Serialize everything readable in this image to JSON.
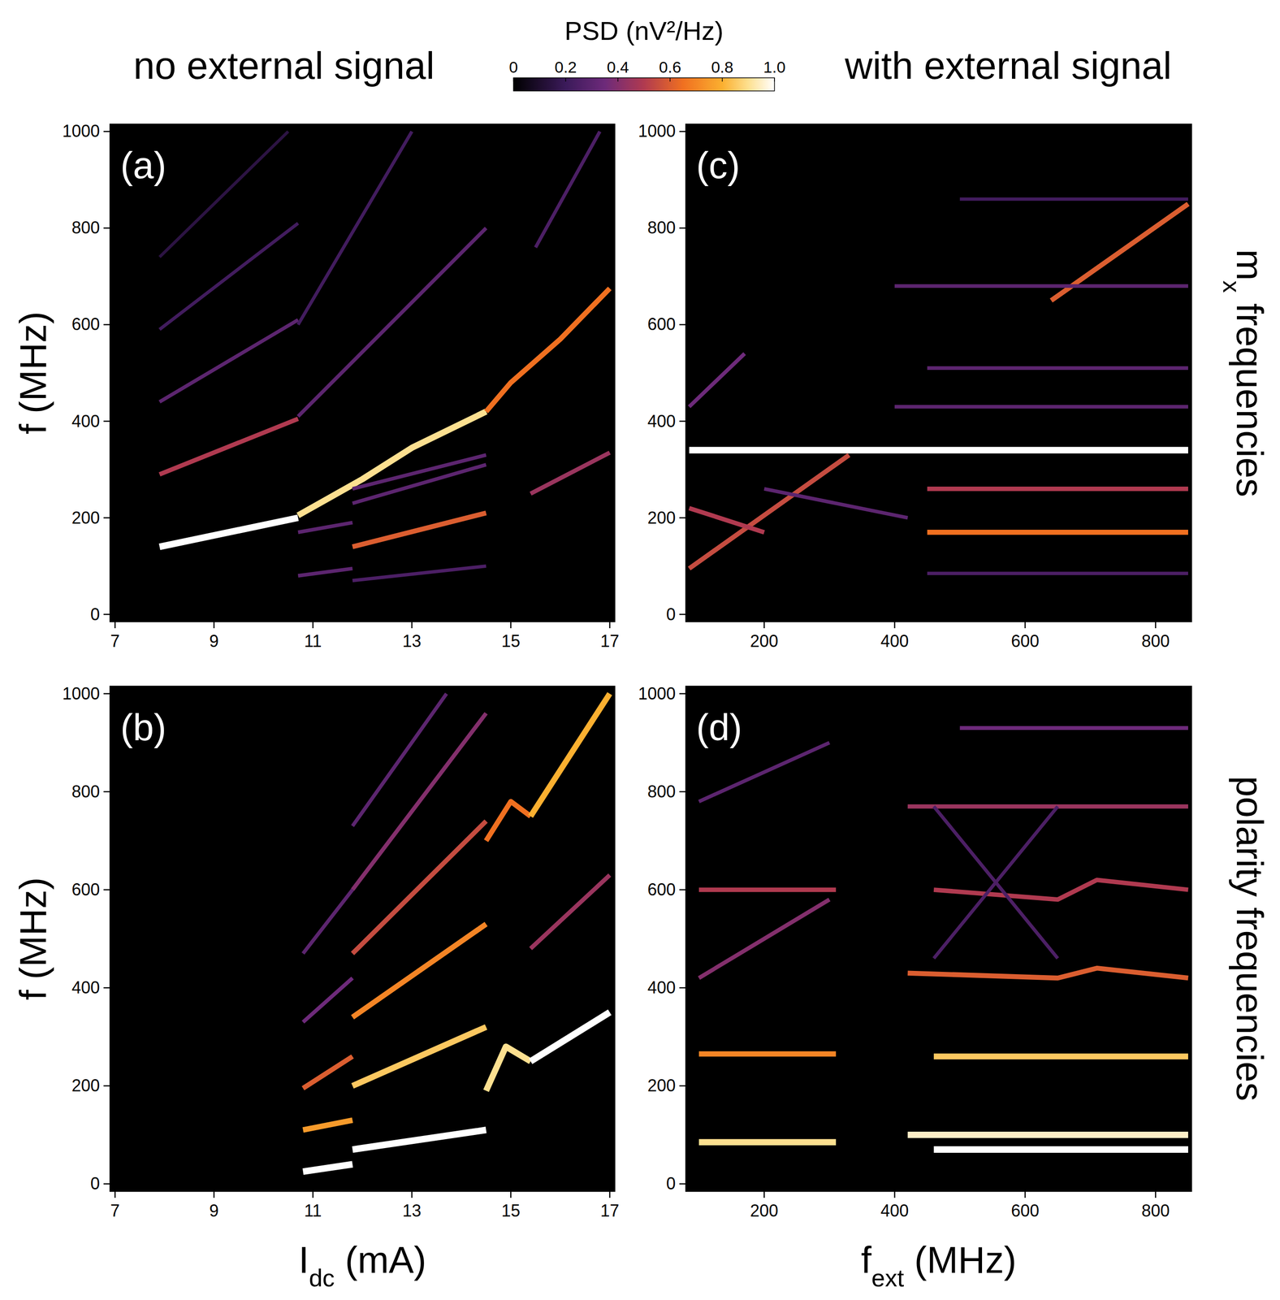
{
  "header": {
    "left": "no external signal",
    "right": "with external signal"
  },
  "colorbar": {
    "title": "PSD (nV²/Hz)",
    "range": [
      0,
      1
    ],
    "ticks": [
      0,
      0.2,
      0.4,
      0.6,
      0.8,
      {
        "value": 1,
        "label": "1.0"
      }
    ]
  },
  "row_labels": [
    {
      "main": "m",
      "sub": "x",
      "tail": " frequencies"
    },
    {
      "main": "polarity frequencies",
      "sub": "",
      "tail": ""
    }
  ],
  "chart_data": [
    {
      "type": "heatmap",
      "label": "(a)",
      "x_label": {
        "main": "I",
        "sub": "dc",
        "tail": " (mA)"
      },
      "y_label": "f (MHz)",
      "xlim": [
        6.9,
        17.1
      ],
      "ylim": [
        -15,
        1015
      ],
      "xticks": [
        7,
        9,
        11,
        13,
        15,
        17
      ],
      "yticks": [
        0,
        200,
        400,
        600,
        800,
        1000
      ],
      "series": [
        {
          "x": [
            7.9,
            10.7
          ],
          "values": [
            140,
            200
          ],
          "psd": 1
        },
        {
          "x": [
            10.7,
            12,
            13,
            14.5
          ],
          "values": [
            205,
            280,
            345,
            420
          ],
          "psd": 0.9
        },
        {
          "x": [
            14.5,
            15,
            16,
            17
          ],
          "values": [
            420,
            480,
            570,
            675
          ],
          "psd": 0.65
        },
        {
          "x": [
            7.9,
            10.7
          ],
          "values": [
            290,
            405
          ],
          "psd": 0.5
        },
        {
          "x": [
            7.9,
            10.7
          ],
          "values": [
            440,
            610
          ],
          "psd": 0.3
        },
        {
          "x": [
            7.9,
            10.7
          ],
          "values": [
            590,
            810
          ],
          "psd": 0.22
        },
        {
          "x": [
            7.9,
            10.5
          ],
          "values": [
            740,
            1000
          ],
          "psd": 0.15
        },
        {
          "x": [
            10.7,
            14.5
          ],
          "values": [
            410,
            800
          ],
          "psd": 0.3
        },
        {
          "x": [
            10.7,
            13
          ],
          "values": [
            600,
            1000
          ],
          "psd": 0.22
        },
        {
          "x": [
            11.8,
            14.5
          ],
          "values": [
            140,
            210
          ],
          "psd": 0.6
        },
        {
          "x": [
            11.8,
            14.5
          ],
          "values": [
            230,
            310
          ],
          "psd": 0.3
        },
        {
          "x": [
            11.8,
            14.5
          ],
          "values": [
            260,
            330
          ],
          "psd": 0.3
        },
        {
          "x": [
            11.8,
            14.5
          ],
          "values": [
            70,
            100
          ],
          "psd": 0.25
        },
        {
          "x": [
            15.4,
            17
          ],
          "values": [
            250,
            335
          ],
          "psd": 0.45
        },
        {
          "x": [
            10.7,
            11.8
          ],
          "values": [
            170,
            190
          ],
          "psd": 0.3
        },
        {
          "x": [
            10.7,
            11.8
          ],
          "values": [
            80,
            95
          ],
          "psd": 0.3
        },
        {
          "x": [
            15.5,
            16.8
          ],
          "values": [
            760,
            1000
          ],
          "psd": 0.25
        }
      ]
    },
    {
      "type": "heatmap",
      "label": "(b)",
      "x_label": {
        "main": "I",
        "sub": "dc",
        "tail": " (mA)"
      },
      "y_label": "f (MHz)",
      "xlim": [
        6.9,
        17.1
      ],
      "ylim": [
        -15,
        1015
      ],
      "xticks": [
        7,
        9,
        11,
        13,
        15,
        17
      ],
      "yticks": [
        0,
        200,
        400,
        600,
        800,
        1000
      ],
      "series": [
        {
          "x": [
            10.8,
            11.8
          ],
          "values": [
            25,
            40
          ],
          "psd": 1
        },
        {
          "x": [
            11.8,
            14.5
          ],
          "values": [
            70,
            110
          ],
          "psd": 1
        },
        {
          "x": [
            10.8,
            11.8
          ],
          "values": [
            110,
            130
          ],
          "psd": 0.75
        },
        {
          "x": [
            10.8,
            11.8
          ],
          "values": [
            195,
            260
          ],
          "psd": 0.6
        },
        {
          "x": [
            11.8,
            14.5
          ],
          "values": [
            200,
            320
          ],
          "psd": 0.85
        },
        {
          "x": [
            11.8,
            14.5
          ],
          "values": [
            340,
            530
          ],
          "psd": 0.7
        },
        {
          "x": [
            11.8,
            14.5
          ],
          "values": [
            470,
            740
          ],
          "psd": 0.55
        },
        {
          "x": [
            11.8,
            14.5
          ],
          "values": [
            600,
            960
          ],
          "psd": 0.4
        },
        {
          "x": [
            11.8,
            13.7
          ],
          "values": [
            730,
            1000
          ],
          "psd": 0.3
        },
        {
          "x": [
            10.8,
            11.8
          ],
          "values": [
            330,
            420
          ],
          "psd": 0.35
        },
        {
          "x": [
            10.8,
            11.8
          ],
          "values": [
            470,
            600
          ],
          "psd": 0.3
        },
        {
          "x": [
            14.5,
            14.9,
            15.4
          ],
          "values": [
            190,
            280,
            250
          ],
          "psd": 0.9
        },
        {
          "x": [
            15.4,
            17
          ],
          "values": [
            250,
            350
          ],
          "psd": 1
        },
        {
          "x": [
            14.5,
            15.0,
            15.4
          ],
          "values": [
            700,
            780,
            750
          ],
          "psd": 0.65
        },
        {
          "x": [
            15.4,
            17
          ],
          "values": [
            750,
            1000
          ],
          "psd": 0.8
        },
        {
          "x": [
            15.4,
            17
          ],
          "values": [
            480,
            630
          ],
          "psd": 0.45
        }
      ]
    },
    {
      "type": "heatmap",
      "label": "(c)",
      "x_label": {
        "main": "f",
        "sub": "ext",
        "tail": " (MHz)"
      },
      "y_label": "",
      "xlim": [
        80,
        855
      ],
      "ylim": [
        -15,
        1015
      ],
      "xticks": [
        200,
        400,
        600,
        800
      ],
      "yticks": [
        0,
        200,
        400,
        600,
        800,
        1000
      ],
      "series": [
        {
          "x": [
            85,
            850
          ],
          "values": [
            340,
            340
          ],
          "psd": 1
        },
        {
          "x": [
            450,
            850
          ],
          "values": [
            170,
            170
          ],
          "psd": 0.65
        },
        {
          "x": [
            450,
            850
          ],
          "values": [
            260,
            260
          ],
          "psd": 0.5
        },
        {
          "x": [
            85,
            330
          ],
          "values": [
            95,
            330
          ],
          "psd": 0.55
        },
        {
          "x": [
            640,
            850
          ],
          "values": [
            650,
            850
          ],
          "psd": 0.6
        },
        {
          "x": [
            85,
            170
          ],
          "values": [
            430,
            540
          ],
          "psd": 0.35
        },
        {
          "x": [
            85,
            200
          ],
          "values": [
            220,
            170
          ],
          "psd": 0.5
        },
        {
          "x": [
            450,
            850
          ],
          "values": [
            85,
            85
          ],
          "psd": 0.25
        },
        {
          "x": [
            400,
            850
          ],
          "values": [
            430,
            430
          ],
          "psd": 0.3
        },
        {
          "x": [
            450,
            850
          ],
          "values": [
            510,
            510
          ],
          "psd": 0.3
        },
        {
          "x": [
            400,
            850
          ],
          "values": [
            680,
            680
          ],
          "psd": 0.3
        },
        {
          "x": [
            500,
            850
          ],
          "values": [
            860,
            860
          ],
          "psd": 0.22
        },
        {
          "x": [
            200,
            420
          ],
          "values": [
            260,
            200
          ],
          "psd": 0.3
        }
      ]
    },
    {
      "type": "heatmap",
      "label": "(d)",
      "x_label": {
        "main": "f",
        "sub": "ext",
        "tail": " (MHz)"
      },
      "y_label": "",
      "xlim": [
        80,
        855
      ],
      "ylim": [
        -15,
        1015
      ],
      "xticks": [
        200,
        400,
        600,
        800
      ],
      "yticks": [
        0,
        200,
        400,
        600,
        800,
        1000
      ],
      "series": [
        {
          "x": [
            460,
            850
          ],
          "values": [
            70,
            70
          ],
          "psd": 1
        },
        {
          "x": [
            420,
            850
          ],
          "values": [
            100,
            100
          ],
          "psd": 0.95
        },
        {
          "x": [
            100,
            310
          ],
          "values": [
            85,
            85
          ],
          "psd": 0.9
        },
        {
          "x": [
            100,
            310
          ],
          "values": [
            265,
            265
          ],
          "psd": 0.7
        },
        {
          "x": [
            460,
            850
          ],
          "values": [
            260,
            260
          ],
          "psd": 0.85
        },
        {
          "x": [
            420,
            650,
            710,
            850
          ],
          "values": [
            430,
            420,
            440,
            420
          ],
          "psd": 0.6
        },
        {
          "x": [
            460,
            650,
            710,
            850
          ],
          "values": [
            600,
            580,
            620,
            600
          ],
          "psd": 0.5
        },
        {
          "x": [
            100,
            310
          ],
          "values": [
            600,
            600
          ],
          "psd": 0.5
        },
        {
          "x": [
            100,
            300
          ],
          "values": [
            420,
            580
          ],
          "psd": 0.4
        },
        {
          "x": [
            100,
            300
          ],
          "values": [
            780,
            900
          ],
          "psd": 0.3
        },
        {
          "x": [
            420,
            850
          ],
          "values": [
            770,
            770
          ],
          "psd": 0.45
        },
        {
          "x": [
            500,
            850
          ],
          "values": [
            930,
            930
          ],
          "psd": 0.35
        },
        {
          "x": [
            460,
            650
          ],
          "values": [
            460,
            770
          ],
          "psd": 0.25
        },
        {
          "x": [
            460,
            650
          ],
          "values": [
            770,
            460
          ],
          "psd": 0.25
        }
      ]
    }
  ]
}
